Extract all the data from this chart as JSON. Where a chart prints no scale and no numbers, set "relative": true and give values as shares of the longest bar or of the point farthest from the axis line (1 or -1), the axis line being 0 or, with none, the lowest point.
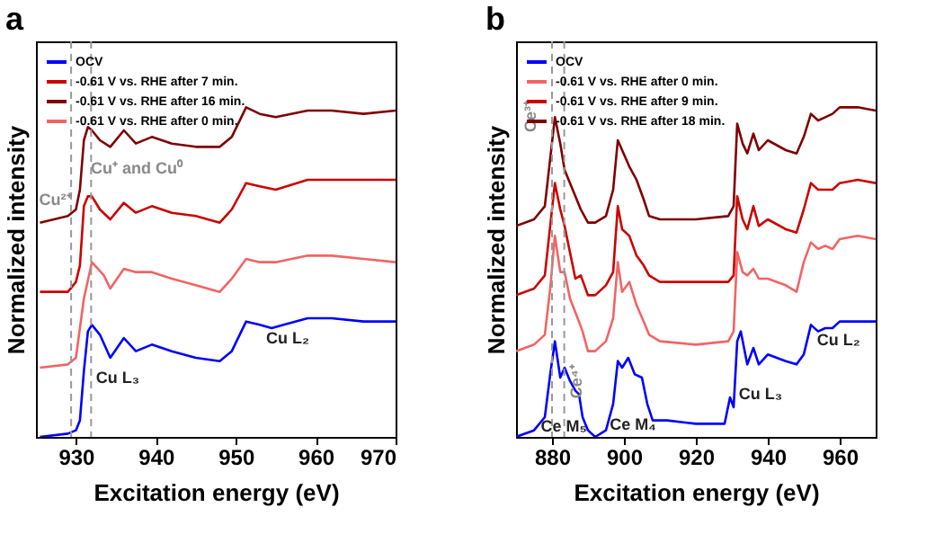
{
  "chart_data": [
    {
      "type": "line",
      "title": "a",
      "xlabel": "Excitation energy (eV)",
      "ylabel": "Normalized intensity",
      "relative": true,
      "xlim": [
        925,
        970
      ],
      "xticks": [
        930,
        940,
        950,
        960,
        970
      ],
      "legend": "top left",
      "series": [
        {
          "name": "OCV",
          "color": "#0000ff",
          "x": [
            925.5,
            929,
            930,
            930.5,
            931,
            931.5,
            932,
            933,
            934.3,
            936,
            937.5,
            939.5,
            942,
            945,
            948,
            949.5,
            951.3,
            953,
            954.5,
            956,
            959,
            962,
            966,
            970
          ],
          "values": [
            0.0,
            0.01,
            0.02,
            0.05,
            0.2,
            0.32,
            0.34,
            0.31,
            0.24,
            0.3,
            0.26,
            0.28,
            0.26,
            0.24,
            0.23,
            0.26,
            0.35,
            0.34,
            0.33,
            0.34,
            0.36,
            0.36,
            0.35,
            0.35
          ]
        },
        {
          "name": "-0.61 V vs. RHE after 7 min.",
          "color": "#cc0000",
          "x": [
            925.5,
            929,
            930,
            930.5,
            931,
            931.5,
            932,
            933,
            934.3,
            936,
            937.5,
            939.5,
            942,
            945,
            948,
            949.5,
            951.3,
            953,
            955,
            959,
            962,
            966,
            970
          ],
          "values": [
            0.44,
            0.44,
            0.47,
            0.52,
            0.7,
            0.73,
            0.73,
            0.69,
            0.66,
            0.71,
            0.68,
            0.7,
            0.68,
            0.67,
            0.65,
            0.69,
            0.77,
            0.76,
            0.75,
            0.78,
            0.78,
            0.78,
            0.78
          ]
        },
        {
          "name": "-0.61 V vs. RHE after 16 min.",
          "color": "#7f0000",
          "x": [
            925.5,
            929,
            930,
            930.5,
            931,
            931.5,
            932,
            933,
            934.3,
            936,
            937.5,
            939.5,
            942,
            945,
            948,
            949.5,
            951.3,
            953,
            955,
            959,
            962,
            966,
            970
          ],
          "values": [
            0.65,
            0.67,
            0.69,
            0.75,
            0.9,
            0.94,
            0.93,
            0.9,
            0.88,
            0.93,
            0.89,
            0.91,
            0.89,
            0.88,
            0.88,
            0.91,
            1.0,
            0.98,
            0.97,
            0.99,
            0.99,
            0.98,
            0.99
          ]
        },
        {
          "name": "-0.61 V vs. RHE after 0 min.",
          "color": "#f26464",
          "x": [
            925.5,
            929,
            930,
            931,
            932,
            933.5,
            934.3,
            936,
            937.5,
            939.5,
            942,
            945,
            948,
            949.5,
            951.3,
            953,
            955,
            959,
            962,
            966,
            970
          ],
          "values": [
            0.21,
            0.22,
            0.24,
            0.42,
            0.53,
            0.49,
            0.45,
            0.51,
            0.5,
            0.5,
            0.48,
            0.46,
            0.44,
            0.48,
            0.54,
            0.53,
            0.53,
            0.55,
            0.55,
            0.54,
            0.53
          ]
        }
      ],
      "ref_lines": [
        {
          "axis": "x",
          "value": 929.4,
          "color": "#999999",
          "line_style": "dashed"
        },
        {
          "axis": "x",
          "value": 931.9,
          "color": "#999999",
          "line_style": "dashed"
        }
      ],
      "annotations": [
        "Cu²⁺",
        "Cu⁺ and Cu⁰",
        "Cu L₃",
        "Cu L₂"
      ]
    },
    {
      "type": "line",
      "title": "b",
      "xlabel": "Excitation energy (eV)",
      "ylabel": "Normalized intensity",
      "relative": true,
      "xlim": [
        870,
        970
      ],
      "xticks": [
        880,
        900,
        920,
        940,
        960
      ],
      "legend": "top left",
      "series": [
        {
          "name": "OCV",
          "color": "#0000ff",
          "x": [
            870,
            875,
            878,
            879.5,
            880.8,
            882.3,
            883.5,
            885,
            886.5,
            887.5,
            888.5,
            890,
            892,
            895,
            897,
            898.3,
            899.5,
            901.2,
            903,
            905,
            906.5,
            908,
            912,
            920,
            928,
            929.5,
            930.5,
            931.5,
            932.5,
            934.3,
            936,
            937.5,
            940,
            945,
            948,
            950,
            952,
            954,
            956,
            958,
            960,
            965,
            970
          ],
          "values": [
            0.0,
            0.02,
            0.06,
            0.19,
            0.29,
            0.18,
            0.21,
            0.17,
            0.14,
            0.13,
            0.06,
            0.02,
            0.0,
            0.02,
            0.1,
            0.23,
            0.21,
            0.24,
            0.19,
            0.18,
            0.1,
            0.05,
            0.05,
            0.04,
            0.04,
            0.12,
            0.09,
            0.29,
            0.32,
            0.22,
            0.27,
            0.22,
            0.25,
            0.23,
            0.22,
            0.25,
            0.34,
            0.32,
            0.33,
            0.33,
            0.35,
            0.35,
            0.35
          ]
        },
        {
          "name": "-0.61 V vs. RHE after 0 min.",
          "color": "#f26464",
          "x": [
            870,
            875,
            878,
            879.5,
            880.8,
            882.3,
            883.5,
            885,
            887.5,
            888.5,
            890,
            892,
            895,
            897,
            898.3,
            899.5,
            901.5,
            903.5,
            905.5,
            907,
            910,
            920,
            929,
            930.5,
            931.5,
            933,
            934.3,
            936,
            937.5,
            940,
            945,
            948,
            950,
            952,
            954,
            956,
            958,
            960,
            965,
            970
          ],
          "values": [
            0.26,
            0.28,
            0.31,
            0.45,
            0.61,
            0.5,
            0.5,
            0.42,
            0.35,
            0.32,
            0.26,
            0.26,
            0.29,
            0.36,
            0.53,
            0.44,
            0.47,
            0.4,
            0.35,
            0.31,
            0.29,
            0.28,
            0.29,
            0.32,
            0.56,
            0.5,
            0.49,
            0.51,
            0.48,
            0.48,
            0.46,
            0.44,
            0.53,
            0.59,
            0.57,
            0.58,
            0.57,
            0.6,
            0.61,
            0.6
          ]
        },
        {
          "name": "-0.61 V vs. RHE after 9 min.",
          "color": "#cc0000",
          "x": [
            870,
            875,
            878,
            880.8,
            882.3,
            883.5,
            885,
            886.5,
            888,
            890,
            892,
            895,
            897,
            898.3,
            899.5,
            901.5,
            903.5,
            905.5,
            907,
            910,
            920,
            929,
            930.5,
            931.5,
            933,
            934.3,
            936,
            937.5,
            940,
            945,
            948,
            950,
            952,
            954,
            956,
            958,
            960,
            965,
            970
          ],
          "values": [
            0.43,
            0.45,
            0.49,
            0.77,
            0.69,
            0.64,
            0.56,
            0.48,
            0.49,
            0.43,
            0.43,
            0.46,
            0.5,
            0.7,
            0.63,
            0.61,
            0.55,
            0.52,
            0.49,
            0.47,
            0.47,
            0.47,
            0.49,
            0.73,
            0.66,
            0.63,
            0.7,
            0.64,
            0.66,
            0.63,
            0.62,
            0.69,
            0.77,
            0.75,
            0.75,
            0.75,
            0.77,
            0.78,
            0.77
          ]
        },
        {
          "name": "-0.61 V vs. RHE after 18 min.",
          "color": "#7f0000",
          "x": [
            870,
            875,
            878,
            880.8,
            882.3,
            883.5,
            885,
            886.5,
            888,
            890,
            892,
            895,
            897,
            898.3,
            899.5,
            901.5,
            903.5,
            905.5,
            907,
            910,
            920,
            929,
            930.5,
            931.5,
            933,
            934.3,
            936,
            937.5,
            940,
            945,
            948,
            950,
            952,
            954,
            956,
            958,
            960,
            965,
            970
          ],
          "values": [
            0.64,
            0.66,
            0.7,
            0.97,
            0.89,
            0.81,
            0.77,
            0.73,
            0.69,
            0.65,
            0.65,
            0.67,
            0.75,
            0.9,
            0.87,
            0.82,
            0.78,
            0.72,
            0.67,
            0.66,
            0.66,
            0.67,
            0.7,
            0.95,
            0.89,
            0.86,
            0.92,
            0.87,
            0.9,
            0.87,
            0.86,
            0.91,
            0.98,
            0.96,
            0.97,
            0.98,
            1.0,
            1.0,
            0.99
          ]
        }
      ],
      "ref_lines": [
        {
          "axis": "x",
          "value": 880,
          "color": "#999999",
          "line_style": "dashed"
        },
        {
          "axis": "x",
          "value": 883.4,
          "color": "#999999",
          "line_style": "dashed"
        }
      ],
      "annotations": [
        "Ce³⁺",
        "Ce⁴⁺",
        "Ce M₅",
        "Ce M₄",
        "Cu L₃",
        "Cu L₂"
      ]
    }
  ]
}
